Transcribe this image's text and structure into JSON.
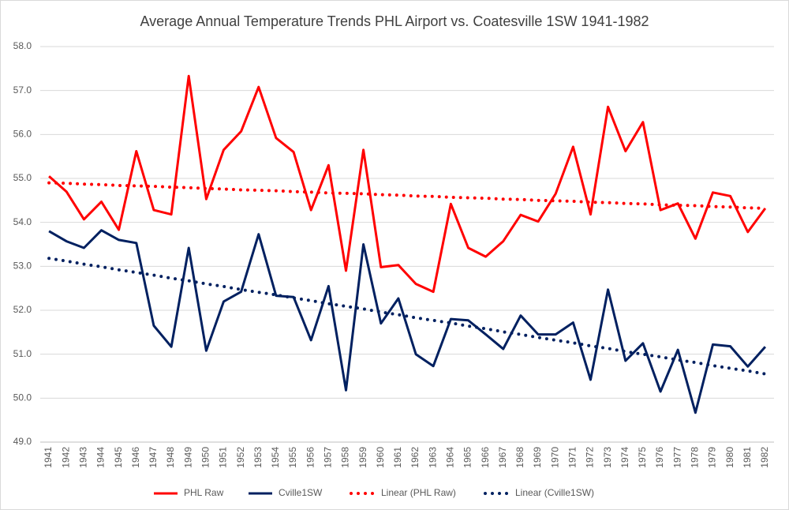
{
  "chart_data": {
    "type": "line",
    "title": "Average Annual Temperature Trends PHL Airport vs. Coatesville 1SW 1941-1982",
    "categories": [
      "1941",
      "1942",
      "1943",
      "1944",
      "1945",
      "1946",
      "1947",
      "1948",
      "1949",
      "1950",
      "1951",
      "1952",
      "1953",
      "1954",
      "1955",
      "1956",
      "1957",
      "1958",
      "1959",
      "1960",
      "1961",
      "1962",
      "1963",
      "1964",
      "1965",
      "1966",
      "1967",
      "1968",
      "1969",
      "1970",
      "1971",
      "1972",
      "1973",
      "1974",
      "1975",
      "1976",
      "1977",
      "1978",
      "1979",
      "1980",
      "1981",
      "1982"
    ],
    "series": [
      {
        "name": "PHL Raw",
        "color": "#ff0000",
        "style": "solid",
        "values": [
          55.05,
          54.7,
          54.07,
          54.47,
          53.83,
          55.62,
          54.28,
          54.18,
          57.33,
          54.53,
          55.65,
          56.07,
          57.08,
          55.92,
          55.6,
          54.28,
          55.3,
          52.9,
          55.65,
          52.98,
          53.03,
          52.6,
          52.42,
          54.42,
          53.42,
          53.22,
          53.57,
          54.17,
          54.02,
          54.65,
          55.72,
          54.18,
          56.63,
          55.62,
          56.28,
          54.28,
          54.43,
          53.63,
          54.68,
          54.6,
          53.78,
          54.32
        ]
      },
      {
        "name": "Cville1SW",
        "color": "#002060",
        "style": "solid",
        "values": [
          53.8,
          53.57,
          53.42,
          53.82,
          53.6,
          53.53,
          51.65,
          51.17,
          53.42,
          51.08,
          52.2,
          52.42,
          53.73,
          52.33,
          52.3,
          51.32,
          52.55,
          50.18,
          53.5,
          51.7,
          52.27,
          51.0,
          50.73,
          51.8,
          51.77,
          51.45,
          51.12,
          51.88,
          51.45,
          51.45,
          51.72,
          50.42,
          52.47,
          50.85,
          51.25,
          50.15,
          51.1,
          49.67,
          51.22,
          51.18,
          50.72,
          51.17
        ]
      },
      {
        "name": "Linear (PHL Raw)",
        "color": "#ff0000",
        "style": "dotted",
        "values": [
          54.9,
          54.89,
          54.87,
          54.86,
          54.84,
          54.83,
          54.82,
          54.8,
          54.79,
          54.77,
          54.76,
          54.74,
          54.73,
          54.72,
          54.7,
          54.69,
          54.67,
          54.66,
          54.65,
          54.63,
          54.62,
          54.6,
          54.59,
          54.57,
          54.56,
          54.55,
          54.53,
          54.52,
          54.5,
          54.49,
          54.48,
          54.46,
          54.45,
          54.43,
          54.42,
          54.4,
          54.39,
          54.38,
          54.36,
          54.35,
          54.33,
          54.32
        ]
      },
      {
        "name": "Linear (Cville1SW)",
        "color": "#002060",
        "style": "dotted",
        "values": [
          53.18,
          53.12,
          53.05,
          52.99,
          52.92,
          52.86,
          52.8,
          52.73,
          52.67,
          52.6,
          52.54,
          52.47,
          52.41,
          52.35,
          52.28,
          52.22,
          52.15,
          52.09,
          52.03,
          51.96,
          51.9,
          51.83,
          51.77,
          51.71,
          51.64,
          51.58,
          51.51,
          51.45,
          51.38,
          51.32,
          51.26,
          51.19,
          51.13,
          51.06,
          51.0,
          50.94,
          50.87,
          50.81,
          50.74,
          50.68,
          50.62,
          50.55
        ]
      }
    ],
    "ylim": [
      49,
      58
    ],
    "yticks": [
      {
        "value": 49,
        "label": "49.0"
      },
      {
        "value": 50,
        "label": "50.0"
      },
      {
        "value": 51,
        "label": "51.0"
      },
      {
        "value": 52,
        "label": "52.0"
      },
      {
        "value": 53,
        "label": "53.0"
      },
      {
        "value": 54,
        "label": "54.0"
      },
      {
        "value": 55,
        "label": "55.0"
      },
      {
        "value": 56,
        "label": "56.0"
      },
      {
        "value": 57,
        "label": "57.0"
      },
      {
        "value": 58,
        "label": "58.0"
      }
    ],
    "grid": true,
    "legend": "bottom"
  }
}
